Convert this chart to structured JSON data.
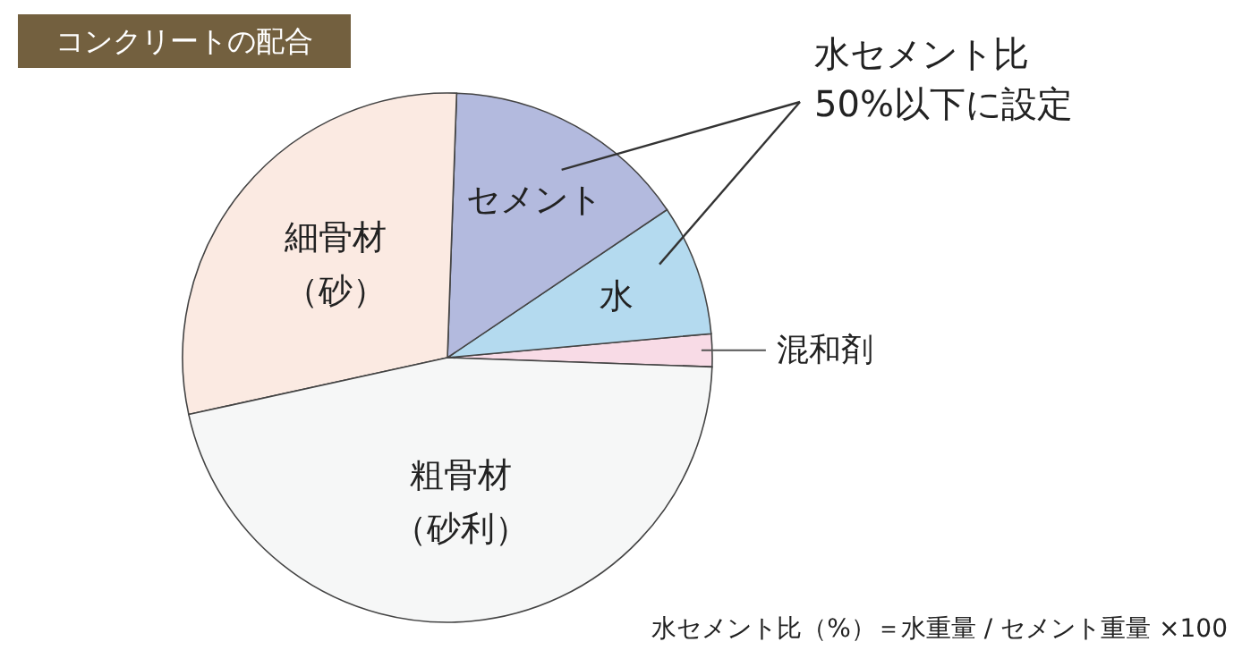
{
  "chart_data": {
    "type": "pie",
    "title": "コンクリートの配合",
    "categories": [
      "混和剤",
      "水",
      "セメント",
      "細骨材（砂）",
      "粗骨材（砂利）"
    ],
    "values": [
      2,
      8,
      15,
      29,
      46
    ],
    "colors": [
      "#f8dbe6",
      "#b4daef",
      "#b3bade",
      "#fbeae2",
      "#f6f7f7"
    ],
    "annotations": [
      "水セメント比\n50%以下に設定",
      "水セメント比（%）＝水重量 / セメント重量 ×100"
    ]
  }
}
